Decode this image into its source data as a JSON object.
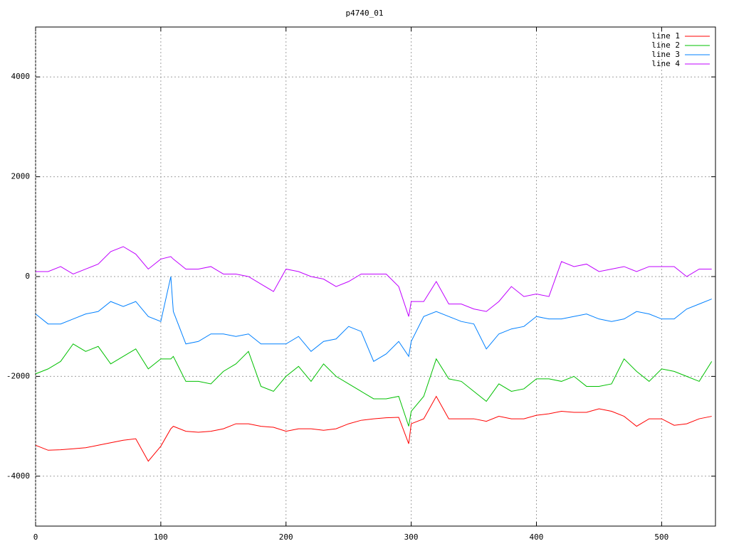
{
  "chart_data": {
    "type": "line",
    "title": "p4740_01",
    "x": [
      0,
      10,
      20,
      30,
      40,
      50,
      60,
      70,
      80,
      90,
      100,
      108,
      110,
      120,
      130,
      140,
      150,
      160,
      170,
      180,
      190,
      200,
      210,
      220,
      230,
      240,
      250,
      260,
      270,
      280,
      290,
      298,
      300,
      310,
      320,
      330,
      340,
      350,
      360,
      370,
      380,
      390,
      400,
      410,
      420,
      430,
      440,
      450,
      460,
      470,
      480,
      490,
      500,
      510,
      520,
      530,
      540
    ],
    "series": [
      {
        "name": "line 1",
        "color": "#ff0000",
        "values": [
          -3380,
          -3480,
          -3470,
          -3450,
          -3430,
          -3380,
          -3330,
          -3280,
          -3250,
          -3700,
          -3400,
          -3050,
          -3000,
          -3100,
          -3120,
          -3100,
          -3050,
          -2950,
          -2950,
          -3000,
          -3020,
          -3100,
          -3050,
          -3050,
          -3080,
          -3050,
          -2950,
          -2880,
          -2850,
          -2830,
          -2820,
          -3350,
          -2950,
          -2850,
          -2400,
          -2850,
          -2850,
          -2850,
          -2900,
          -2800,
          -2850,
          -2850,
          -2780,
          -2750,
          -2700,
          -2720,
          -2720,
          -2650,
          -2700,
          -2800,
          -3000,
          -2850,
          -2850,
          -2980,
          -2950,
          -2850,
          -2800
        ]
      },
      {
        "name": "line 2",
        "color": "#00c000",
        "values": [
          -1950,
          -1850,
          -1700,
          -1350,
          -1500,
          -1400,
          -1750,
          -1600,
          -1450,
          -1850,
          -1650,
          -1650,
          -1600,
          -2100,
          -2100,
          -2150,
          -1900,
          -1750,
          -1500,
          -2200,
          -2300,
          -2000,
          -1800,
          -2100,
          -1750,
          -2000,
          -2150,
          -2300,
          -2450,
          -2450,
          -2400,
          -3000,
          -2700,
          -2400,
          -1650,
          -2050,
          -2100,
          -2300,
          -2500,
          -2150,
          -2300,
          -2250,
          -2050,
          -2050,
          -2100,
          -2000,
          -2200,
          -2200,
          -2150,
          -1650,
          -1900,
          -2100,
          -1850,
          -1900,
          -2000,
          -2100,
          -1700
        ]
      },
      {
        "name": "line 3",
        "color": "#0080ff",
        "values": [
          -750,
          -950,
          -950,
          -850,
          -750,
          -700,
          -500,
          -600,
          -500,
          -800,
          -900,
          0,
          -700,
          -1350,
          -1300,
          -1150,
          -1150,
          -1200,
          -1150,
          -1350,
          -1350,
          -1350,
          -1200,
          -1500,
          -1300,
          -1250,
          -1000,
          -1100,
          -1700,
          -1550,
          -1300,
          -1600,
          -1300,
          -800,
          -700,
          -800,
          -900,
          -950,
          -1450,
          -1150,
          -1050,
          -1000,
          -800,
          -850,
          -850,
          -800,
          -750,
          -850,
          -900,
          -850,
          -700,
          -750,
          -850,
          -850,
          -650,
          -550,
          -450
        ]
      },
      {
        "name": "line 4",
        "color": "#c000ff",
        "values": [
          100,
          100,
          200,
          50,
          150,
          250,
          500,
          600,
          450,
          150,
          350,
          400,
          350,
          150,
          150,
          200,
          50,
          50,
          0,
          -150,
          -300,
          150,
          100,
          0,
          -50,
          -200,
          -100,
          50,
          50,
          50,
          -200,
          -800,
          -500,
          -500,
          -100,
          -550,
          -550,
          -650,
          -700,
          -500,
          -200,
          -400,
          -350,
          -400,
          300,
          200,
          250,
          100,
          150,
          200,
          100,
          200,
          200,
          200,
          0,
          150,
          150
        ]
      }
    ],
    "xlim": [
      0,
      543
    ],
    "ylim": [
      -5000,
      5000
    ],
    "xticks": [
      0,
      100,
      200,
      300,
      400,
      500
    ],
    "yticks": [
      -4000,
      -2000,
      0,
      2000,
      4000
    ],
    "grid": true,
    "legend": "top-right"
  }
}
